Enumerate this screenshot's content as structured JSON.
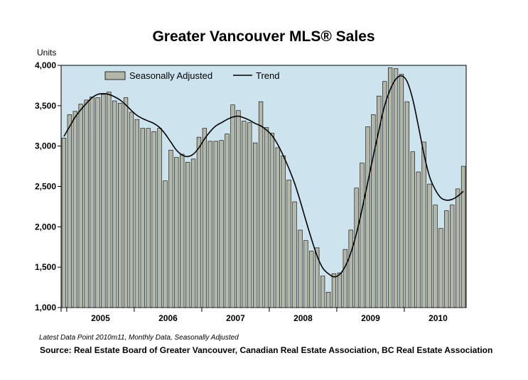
{
  "chart_data": {
    "type": "bar",
    "title": "Greater Vancouver MLS® Sales",
    "ylabel": "Units",
    "xlabel": "",
    "ylim": [
      1000,
      4000
    ],
    "yticks": [
      1000,
      1500,
      2000,
      2500,
      3000,
      3500,
      4000
    ],
    "ytick_labels": [
      "1,000",
      "1,500",
      "2,000",
      "2,500",
      "3,000",
      "3,500",
      "4,000"
    ],
    "year_labels": [
      "2005",
      "2006",
      "2007",
      "2008",
      "2009",
      "2010"
    ],
    "period_start": "2004m12",
    "period_end": "2010m11",
    "legend": [
      "Seasonally Adjusted",
      "Trend"
    ],
    "legend_position": "top-left",
    "grid": false,
    "background_color": "#cde3ee",
    "bar_color": "#b4b6a8",
    "line_color": "#000000",
    "series": [
      {
        "name": "Seasonally Adjusted",
        "type": "bar",
        "values": [
          3100,
          3390,
          3430,
          3520,
          3570,
          3610,
          3600,
          3640,
          3670,
          3560,
          3530,
          3600,
          3420,
          3330,
          3220,
          3220,
          3180,
          3220,
          2570,
          2950,
          2860,
          2900,
          2800,
          2840,
          3110,
          3220,
          3060,
          3060,
          3070,
          3150,
          3510,
          3440,
          3310,
          3290,
          3040,
          3550,
          3230,
          3160,
          2980,
          2880,
          2580,
          2310,
          1960,
          1830,
          1700,
          1740,
          1390,
          1190,
          1420,
          1430,
          1720,
          1960,
          2480,
          2790,
          3240,
          3390,
          3620,
          3800,
          3970,
          3960,
          3890,
          3550,
          2930,
          2680,
          3050,
          2530,
          2270,
          1980,
          2200,
          2270,
          2470,
          2750
        ]
      },
      {
        "name": "Trend",
        "type": "line",
        "values": [
          3120,
          3240,
          3360,
          3450,
          3530,
          3600,
          3640,
          3650,
          3640,
          3610,
          3570,
          3510,
          3440,
          3380,
          3340,
          3310,
          3280,
          3230,
          3150,
          3050,
          2950,
          2890,
          2870,
          2900,
          2980,
          3090,
          3180,
          3250,
          3290,
          3330,
          3360,
          3370,
          3350,
          3320,
          3280,
          3250,
          3200,
          3130,
          3020,
          2880,
          2720,
          2540,
          2320,
          2080,
          1850,
          1640,
          1490,
          1420,
          1380,
          1410,
          1510,
          1680,
          1920,
          2220,
          2550,
          2880,
          3200,
          3500,
          3700,
          3830,
          3870,
          3800,
          3580,
          3250,
          2900,
          2620,
          2460,
          2360,
          2330,
          2340,
          2380,
          2440
        ]
      }
    ],
    "note": "Latest Data Point 2010m11, Monthly Data, Seasonally Adjusted",
    "source": "Source: Real Estate Board of Greater Vancouver, Canadian Real Estate Association, BC Real Estate Association"
  }
}
